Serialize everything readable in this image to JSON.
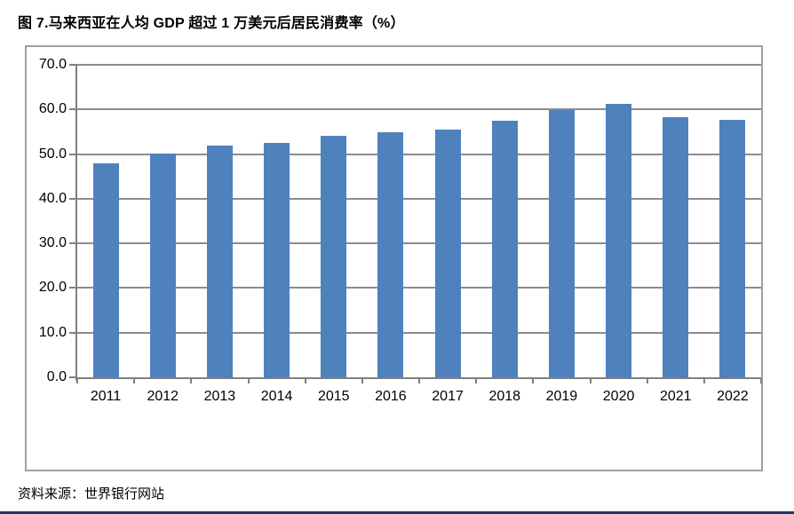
{
  "page": {
    "title": "图 7.马来西亚在人均 GDP 超过 1 万美元后居民消费率（%）",
    "source": "资料来源：世界银行网站"
  },
  "chart_data": {
    "type": "bar",
    "title": "图 7.马来西亚在人均 GDP 超过 1 万美元后居民消费率（%）",
    "categories": [
      "2011",
      "2012",
      "2013",
      "2014",
      "2015",
      "2016",
      "2017",
      "2018",
      "2019",
      "2020",
      "2021",
      "2022"
    ],
    "values": [
      48.0,
      50.1,
      51.9,
      52.5,
      54.1,
      54.9,
      55.5,
      57.4,
      59.9,
      61.3,
      58.2,
      57.6
    ],
    "xlabel": "",
    "ylabel": "",
    "ylim": [
      0,
      70
    ],
    "ytick_step": 10,
    "ytick_labels": [
      "0.0",
      "10.0",
      "20.0",
      "30.0",
      "40.0",
      "50.0",
      "60.0",
      "70.0"
    ],
    "grid": true,
    "legend_position": "none",
    "colors": {
      "bar": "#4F81BD",
      "gridline": "#8C8C8C",
      "axis": "#808080",
      "chart_border": "#A0A0A0",
      "text": "#000000",
      "bottom_rule": "#1F3864"
    }
  }
}
